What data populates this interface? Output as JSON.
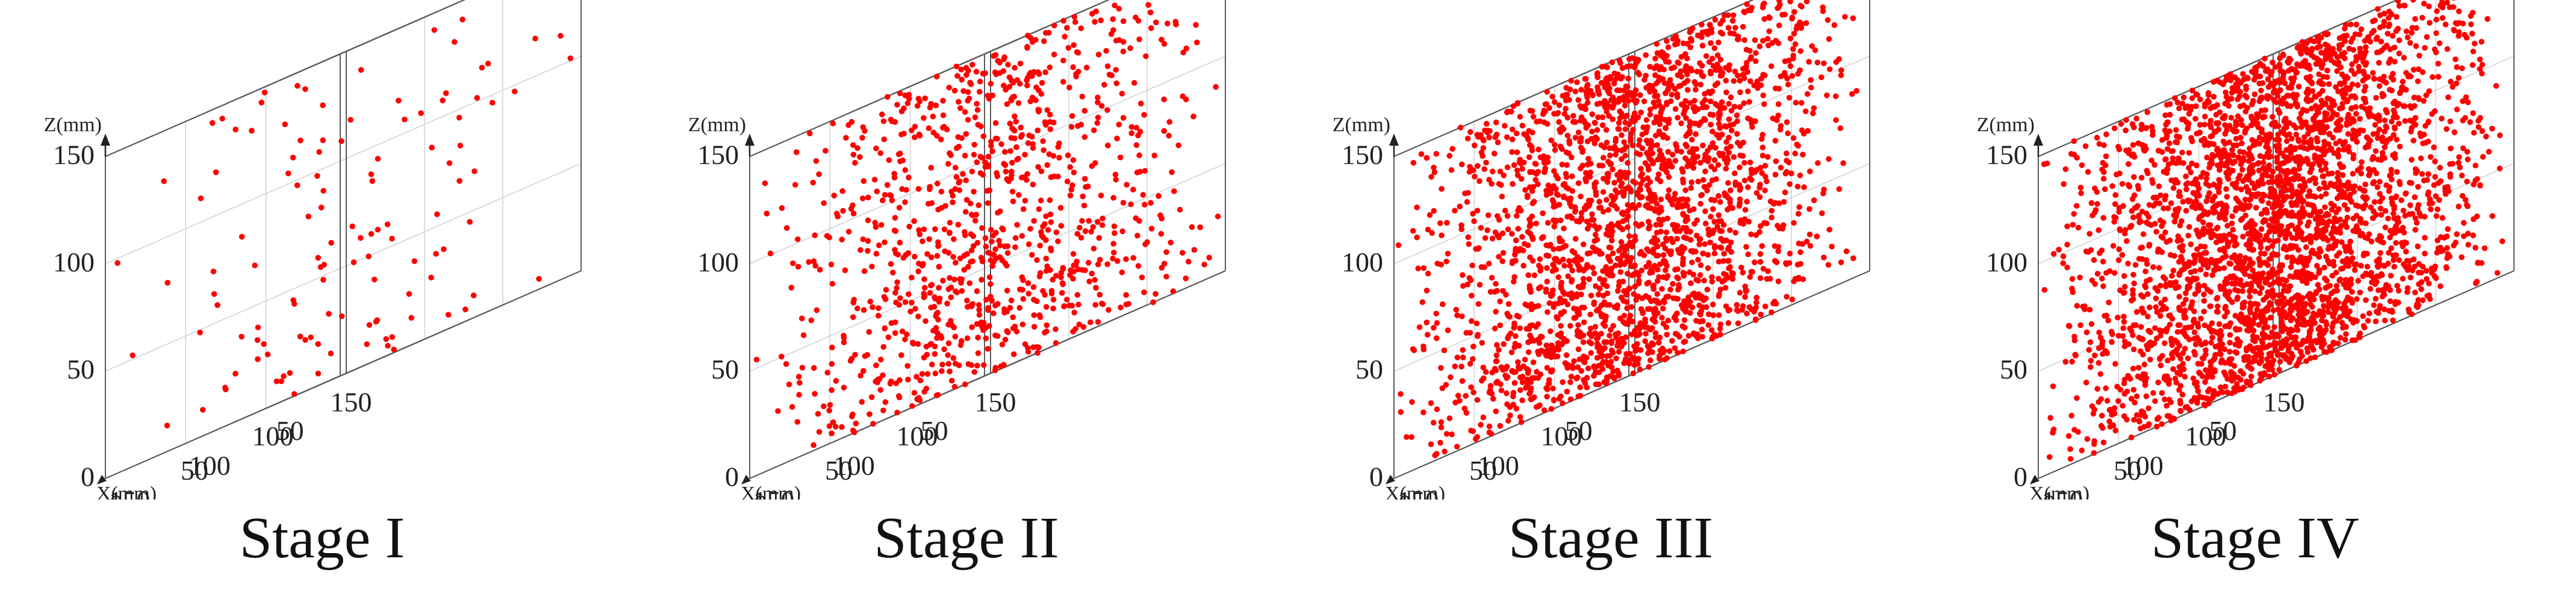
{
  "chart_data": [
    {
      "type": "scatter3d",
      "title": "Stage I",
      "axis_labels": {
        "x": "X(mm)",
        "y": "",
        "z": "Z(mm)"
      },
      "ticks": {
        "x": [
          "0",
          "50",
          "100",
          "150"
        ],
        "y": [
          "0",
          "50",
          "100",
          "150"
        ],
        "z": [
          "0",
          "50",
          "100",
          "150"
        ]
      },
      "xlim": [
        0,
        150
      ],
      "ylim": [
        0,
        150
      ],
      "zlim": [
        0,
        150
      ],
      "grid": true,
      "point_color": "#ff0000",
      "approx_point_count": 120,
      "density": {
        "base": 0.28,
        "clusters": [
          {
            "x": 80,
            "y": 70,
            "z": 135,
            "sigma": 30,
            "weight": 0.25
          },
          {
            "x": 75,
            "y": 75,
            "z": 10,
            "sigma": 40,
            "weight": 0.45
          }
        ]
      }
    },
    {
      "type": "scatter3d",
      "title": "Stage II",
      "axis_labels": {
        "x": "X(mm)",
        "y": "",
        "z": "Z(mm)"
      },
      "ticks": {
        "x": [
          "0",
          "50",
          "100",
          "150"
        ],
        "y": [
          "0",
          "50",
          "100",
          "150"
        ],
        "z": [
          "0",
          "50",
          "100",
          "150"
        ]
      },
      "xlim": [
        0,
        150
      ],
      "ylim": [
        0,
        150
      ],
      "zlim": [
        0,
        150
      ],
      "grid": true,
      "point_color": "#ff0000",
      "approx_point_count": 1000,
      "density": {
        "base": 0.4,
        "clusters": [
          {
            "x": 75,
            "y": 75,
            "z": 140,
            "sigma": 35,
            "weight": 0.15
          },
          {
            "x": 80,
            "y": 70,
            "z": 15,
            "sigma": 35,
            "weight": 0.3
          },
          {
            "x": 75,
            "y": 75,
            "z": 75,
            "sigma": 25,
            "weight": 0.15
          }
        ]
      }
    },
    {
      "type": "scatter3d",
      "title": "Stage III",
      "axis_labels": {
        "x": "X(mm)",
        "y": "",
        "z": "Z(mm)"
      },
      "ticks": {
        "x": [
          "0",
          "50",
          "100",
          "150"
        ],
        "y": [
          "0",
          "50",
          "100",
          "150"
        ],
        "z": [
          "0",
          "50",
          "100",
          "150"
        ]
      },
      "xlim": [
        0,
        150
      ],
      "ylim": [
        0,
        150
      ],
      "zlim": [
        0,
        150
      ],
      "grid": true,
      "point_color": "#ff0000",
      "approx_point_count": 2400,
      "density": {
        "base": 0.35,
        "clusters": [
          {
            "x": 75,
            "y": 75,
            "z": 135,
            "sigma": 35,
            "weight": 0.15
          },
          {
            "x": 80,
            "y": 70,
            "z": 30,
            "sigma": 30,
            "weight": 0.35
          },
          {
            "x": 70,
            "y": 75,
            "z": 85,
            "sigma": 25,
            "weight": 0.15
          }
        ]
      }
    },
    {
      "type": "scatter3d",
      "title": "Stage IV",
      "axis_labels": {
        "x": "X(mm)",
        "y": "",
        "z": "Z(mm)"
      },
      "ticks": {
        "x": [
          "0",
          "50",
          "100",
          "150"
        ],
        "y": [
          "0",
          "50",
          "100",
          "150"
        ],
        "z": [
          "0",
          "50",
          "100",
          "150"
        ]
      },
      "xlim": [
        0,
        150
      ],
      "ylim": [
        0,
        150
      ],
      "zlim": [
        0,
        150
      ],
      "grid": true,
      "point_color": "#ff0000",
      "approx_point_count": 3300,
      "density": {
        "base": 0.3,
        "clusters": [
          {
            "x": 75,
            "y": 75,
            "z": 130,
            "sigma": 30,
            "weight": 0.15
          },
          {
            "x": 80,
            "y": 70,
            "z": 30,
            "sigma": 28,
            "weight": 0.35
          },
          {
            "x": 72,
            "y": 75,
            "z": 80,
            "sigma": 22,
            "weight": 0.2
          }
        ]
      }
    }
  ]
}
